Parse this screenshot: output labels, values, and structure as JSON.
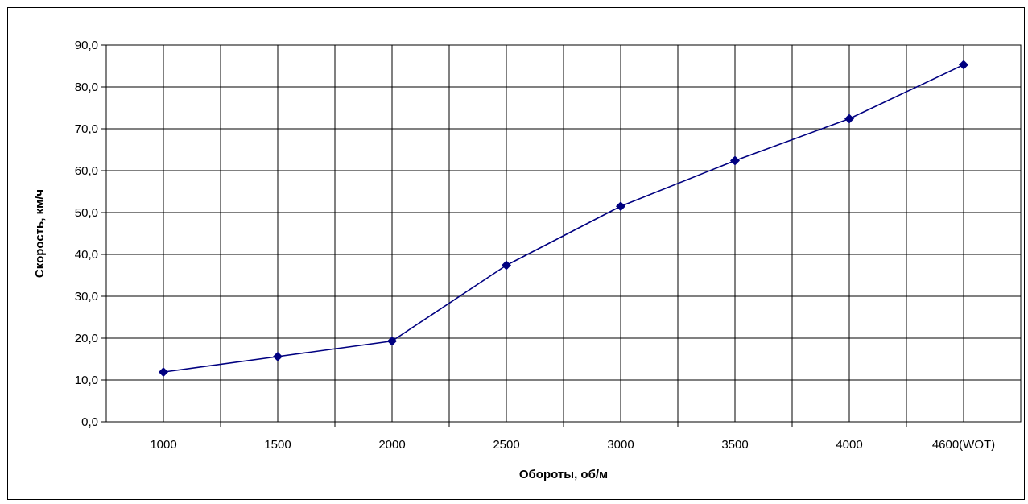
{
  "chart_data": {
    "type": "line",
    "title": "",
    "xlabel": "Обороты, об/м",
    "ylabel": "Скорость, км/ч",
    "categories": [
      "1000",
      "1500",
      "2000",
      "2500",
      "3000",
      "3500",
      "4000",
      "4600(WOT)"
    ],
    "series": [
      {
        "values": [
          11.9,
          15.6,
          19.3,
          37.4,
          51.5,
          62.4,
          72.4,
          85.3
        ]
      }
    ],
    "ylim": [
      0,
      90
    ],
    "y_ticks": [
      "0,0",
      "10,0",
      "20,0",
      "30,0",
      "40,0",
      "50,0",
      "60,0",
      "70,0",
      "80,0",
      "90,0"
    ],
    "grid": true,
    "legend": "none",
    "colors": {
      "line": "#000080",
      "marker": "#000080",
      "grid": "#000000",
      "frame": "#000000"
    }
  }
}
